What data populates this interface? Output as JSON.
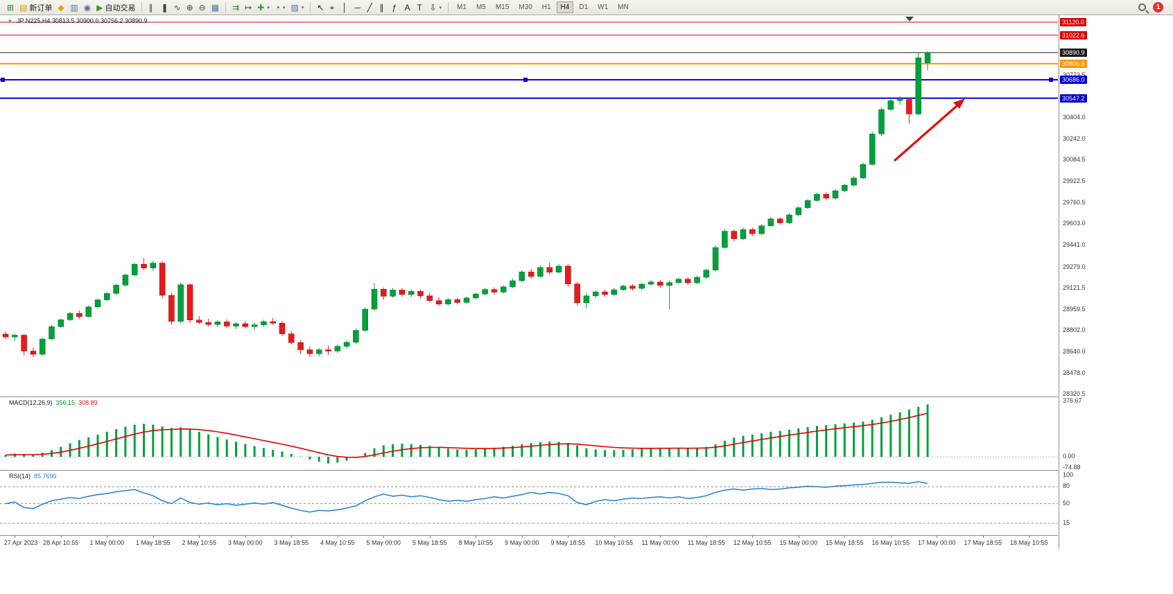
{
  "toolbar": {
    "caret_glyph": "▾",
    "groups": [
      {
        "items": [
          {
            "name": "new-chart-button",
            "glyph": "⊞",
            "color": "#2e7d32"
          },
          {
            "name": "new-order-button",
            "glyph": "▤",
            "color": "#c8a415",
            "label": "新订单"
          },
          {
            "name": "metaeditor-button",
            "glyph": "◆",
            "color": "#d9a520"
          },
          {
            "name": "market-watch-button",
            "glyph": "▥",
            "color": "#4a76a8"
          },
          {
            "name": "navigator-button",
            "glyph": "◉",
            "color": "#6d5ba8"
          },
          {
            "name": "auto-trading-button",
            "glyph": "▶",
            "color": "#2e9e2e",
            "label": "自动交易"
          }
        ]
      },
      {
        "items": [
          {
            "name": "bar-chart-type-button",
            "glyph": "∥",
            "color": "#444"
          },
          {
            "name": "candlestick-chart-type-button",
            "glyph": "❚",
            "color": "#444"
          },
          {
            "name": "line-chart-type-button",
            "glyph": "∿",
            "color": "#444"
          },
          {
            "name": "zoom-in-button",
            "glyph": "⊕",
            "color": "#444"
          },
          {
            "name": "zoom-out-button",
            "glyph": "⊖",
            "color": "#444"
          },
          {
            "name": "tile-windows-button",
            "glyph": "▦",
            "color": "#4a76a8"
          }
        ]
      },
      {
        "items": [
          {
            "name": "auto-scroll-button",
            "glyph": "⇉",
            "color": "#2e7d32"
          },
          {
            "name": "chart-shift-button",
            "glyph": "↦",
            "color": "#444"
          },
          {
            "name": "indicators-button",
            "glyph": "✚",
            "color": "#2e9e2e",
            "caret": true
          },
          {
            "name": "periods-button",
            "glyph": "◔",
            "color": "#444",
            "caret": true
          },
          {
            "name": "templates-button",
            "glyph": "▨",
            "color": "#4a76a8",
            "caret": true
          }
        ]
      },
      {
        "items": [
          {
            "name": "cursor-tool-button",
            "glyph": "↖",
            "color": "#222"
          },
          {
            "name": "crosshair-tool-button",
            "glyph": "⌖",
            "color": "#222"
          },
          {
            "name": "vertical-line-tool-button",
            "glyph": "│",
            "color": "#222"
          },
          {
            "name": "horizontal-line-tool-button",
            "glyph": "─",
            "color": "#222"
          },
          {
            "name": "trendline-tool-button",
            "glyph": "╱",
            "color": "#222"
          },
          {
            "name": "channel-tool-button",
            "glyph": "∥",
            "color": "#222"
          },
          {
            "name": "fibonacci-tool-button",
            "glyph": "ƒ",
            "color": "#222"
          },
          {
            "name": "text-tool-button",
            "glyph": "A",
            "color": "#222"
          },
          {
            "name": "label-tool-button",
            "glyph": "T",
            "color": "#222"
          },
          {
            "name": "shapes-tool-button",
            "glyph": "⇩",
            "color": "#222",
            "caret": true
          }
        ]
      }
    ],
    "timeframes": [
      "M1",
      "M5",
      "M15",
      "M30",
      "H1",
      "H4",
      "D1",
      "W1",
      "MN"
    ],
    "active_timeframe": "H4",
    "notification_badge": "1"
  },
  "chart": {
    "symbol_marker": "▸",
    "title": "JP N225,H4 30813.5 30900.0 30756.2 30890.9"
  },
  "price_axis": {
    "ticks": [
      "30723.5",
      "30404.0",
      "30242.0",
      "30084.5",
      "29922.5",
      "29760.5",
      "29603.0",
      "29441.0",
      "29279.0",
      "29121.5",
      "28959.5",
      "28802.0",
      "28640.0",
      "28478.0",
      "28320.5"
    ],
    "badges": [
      {
        "text": "31120.0",
        "color": "#dd0000"
      },
      {
        "text": "31022.6",
        "color": "#dd0000"
      },
      {
        "text": "30890.9",
        "color": "#1a1a1a",
        "role": "current"
      },
      {
        "text": "30806.8",
        "color": "#ff9500"
      },
      {
        "text": "30686.0",
        "color": "#0000cc"
      },
      {
        "text": "30547.2",
        "color": "#0000cc"
      }
    ]
  },
  "indicators": {
    "macd": {
      "name": "MACD(12,26,9)",
      "value": "356.15",
      "signal": "308.89",
      "axis_ticks": [
        "376.67",
        "0.00",
        "-74.88"
      ]
    },
    "rsi": {
      "name": "RSI(14)",
      "value": "85.7695",
      "axis_ticks": [
        "100",
        "80",
        "50",
        "15"
      ]
    }
  },
  "annotations": {
    "arrow_color": "#dd1111"
  },
  "chart_data": [
    {
      "type": "candlestick",
      "symbol": "JPN225",
      "timeframe": "H4",
      "ohlc_current": {
        "open": 30813.5,
        "high": 30900.0,
        "low": 30756.2,
        "close": 30890.9
      },
      "ylim": [
        28300.0,
        31172.0
      ],
      "colors": {
        "up": "#00a03c",
        "down": "#e51c1c",
        "up_edge": "#00702a",
        "down_edge": "#aa0000"
      },
      "x_labels": [
        "27 Apr 2023",
        "28 Apr 10:55",
        "1 May 00:00",
        "1 May 18:55",
        "2 May 10:55",
        "3 May 00:00",
        "3 May 18:55",
        "4 May 10:55",
        "5 May 00:00",
        "5 May 18:55",
        "8 May 10:55",
        "9 May 00:00",
        "9 May 18:55",
        "10 May 10:55",
        "11 May 00:00",
        "11 May 18:55",
        "12 May 10:55",
        "15 May 00:00",
        "15 May 18:55",
        "16 May 10:55",
        "17 May 00:00",
        "17 May 18:55",
        "18 May 10:55"
      ],
      "hlines": [
        {
          "price": 31120.0,
          "color": "#dd0000",
          "width": 1
        },
        {
          "price": 31022.6,
          "color": "#dd0000",
          "width": 1
        },
        {
          "price": 30890.9,
          "color": "#1a1a1a",
          "width": 1,
          "role": "current-price"
        },
        {
          "price": 30806.8,
          "color": "#ff9500",
          "width": 2
        },
        {
          "price": 30686.0,
          "color": "#0000cc",
          "width": 2,
          "handles": true
        },
        {
          "price": 30547.2,
          "color": "#0000cc",
          "width": 2
        }
      ],
      "candles": [
        [
          28770,
          28790,
          28735,
          28748
        ],
        [
          28748,
          28772,
          28718,
          28762
        ],
        [
          28762,
          28770,
          28610,
          28642
        ],
        [
          28642,
          28668,
          28596,
          28618
        ],
        [
          28618,
          28742,
          28608,
          28733
        ],
        [
          28733,
          28838,
          28726,
          28826
        ],
        [
          28826,
          28888,
          28818,
          28878
        ],
        [
          28878,
          28938,
          28868,
          28926
        ],
        [
          28926,
          28948,
          28882,
          28902
        ],
        [
          28902,
          28986,
          28896,
          28975
        ],
        [
          28975,
          29038,
          28965,
          29028
        ],
        [
          29028,
          29085,
          29018,
          29076
        ],
        [
          29076,
          29148,
          29066,
          29139
        ],
        [
          29139,
          29226,
          29128,
          29215
        ],
        [
          29215,
          29308,
          29206,
          29296
        ],
        [
          29296,
          29345,
          29252,
          29268
        ],
        [
          29268,
          29322,
          29248,
          29305
        ],
        [
          29305,
          29318,
          29040,
          29062
        ],
        [
          29062,
          29078,
          28838,
          28866
        ],
        [
          28866,
          29158,
          28852,
          29142
        ],
        [
          29142,
          29150,
          28852,
          28876
        ],
        [
          28876,
          28906,
          28842,
          28858
        ],
        [
          28858,
          28886,
          28828,
          28842
        ],
        [
          28842,
          28876,
          28824,
          28862
        ],
        [
          28862,
          28880,
          28816,
          28830
        ],
        [
          28830,
          28862,
          28808,
          28848
        ],
        [
          28848,
          28870,
          28812,
          28826
        ],
        [
          28826,
          28856,
          28800,
          28840
        ],
        [
          28840,
          28878,
          28826,
          28864
        ],
        [
          28864,
          28892,
          28838,
          28852
        ],
        [
          28852,
          28868,
          28756,
          28772
        ],
        [
          28772,
          28792,
          28692,
          28706
        ],
        [
          28706,
          28724,
          28618,
          28652
        ],
        [
          28652,
          28676,
          28598,
          28622
        ],
        [
          28622,
          28664,
          28602,
          28652
        ],
        [
          28652,
          28682,
          28612,
          28642
        ],
        [
          28642,
          28692,
          28626,
          28678
        ],
        [
          28678,
          28722,
          28662,
          28708
        ],
        [
          28708,
          28812,
          28698,
          28798
        ],
        [
          28798,
          28972,
          28788,
          28958
        ],
        [
          28958,
          29155,
          28948,
          29108
        ],
        [
          29108,
          29122,
          29028,
          29055
        ],
        [
          29055,
          29118,
          29042,
          29102
        ],
        [
          29102,
          29116,
          29052,
          29068
        ],
        [
          29068,
          29108,
          29048,
          29092
        ],
        [
          29092,
          29104,
          29038,
          29058
        ],
        [
          29058,
          29078,
          29008,
          29022
        ],
        [
          29022,
          29048,
          28982,
          28996
        ],
        [
          28996,
          29042,
          28986,
          29030
        ],
        [
          29030,
          29044,
          28992,
          29008
        ],
        [
          29008,
          29052,
          28998,
          29042
        ],
        [
          29042,
          29082,
          29032,
          29072
        ],
        [
          29072,
          29118,
          29062,
          29106
        ],
        [
          29106,
          29122,
          29068,
          29086
        ],
        [
          29086,
          29138,
          29076,
          29126
        ],
        [
          29126,
          29186,
          29116,
          29172
        ],
        [
          29172,
          29252,
          29162,
          29238
        ],
        [
          29238,
          29262,
          29186,
          29204
        ],
        [
          29204,
          29288,
          29194,
          29272
        ],
        [
          29272,
          29308,
          29218,
          29236
        ],
        [
          29236,
          29296,
          29226,
          29282
        ],
        [
          29282,
          29296,
          29128,
          29148
        ],
        [
          29148,
          29162,
          28986,
          29006
        ],
        [
          29006,
          29078,
          28962,
          29058
        ],
        [
          29058,
          29102,
          29042,
          29088
        ],
        [
          29088,
          29104,
          29052,
          29068
        ],
        [
          29068,
          29118,
          29058,
          29104
        ],
        [
          29104,
          29142,
          29094,
          29132
        ],
        [
          29132,
          29148,
          29098,
          29114
        ],
        [
          29114,
          29156,
          29104,
          29146
        ],
        [
          29146,
          29176,
          29136,
          29162
        ],
        [
          29162,
          29178,
          29118,
          29136
        ],
        [
          29136,
          29172,
          28958,
          29158
        ],
        [
          29158,
          29196,
          29146,
          29184
        ],
        [
          29184,
          29198,
          29142,
          29156
        ],
        [
          29156,
          29212,
          29146,
          29198
        ],
        [
          29198,
          29262,
          29188,
          29252
        ],
        [
          29252,
          29438,
          29242,
          29422
        ],
        [
          29422,
          29562,
          29412,
          29545
        ],
        [
          29545,
          29558,
          29468,
          29488
        ],
        [
          29488,
          29572,
          29478,
          29558
        ],
        [
          29558,
          29572,
          29508,
          29526
        ],
        [
          29526,
          29598,
          29516,
          29586
        ],
        [
          29586,
          29652,
          29576,
          29638
        ],
        [
          29638,
          29652,
          29592,
          29608
        ],
        [
          29608,
          29682,
          29598,
          29668
        ],
        [
          29668,
          29732,
          29658,
          29722
        ],
        [
          29722,
          29788,
          29712,
          29776
        ],
        [
          29776,
          29836,
          29766,
          29824
        ],
        [
          29824,
          29838,
          29778,
          29794
        ],
        [
          29794,
          29862,
          29784,
          29850
        ],
        [
          29850,
          29904,
          29840,
          29892
        ],
        [
          29892,
          29958,
          29882,
          29946
        ],
        [
          29946,
          30062,
          29936,
          30048
        ],
        [
          30048,
          30295,
          30038,
          30278
        ],
        [
          30278,
          30475,
          30262,
          30462
        ],
        [
          30462,
          30545,
          30452,
          30528
        ],
        [
          30528,
          30562,
          30498,
          30538
        ],
        [
          30538,
          30552,
          30355,
          30428
        ],
        [
          30428,
          30888,
          30418,
          30852
        ],
        [
          30813.5,
          30900.0,
          30756.2,
          30890.9
        ]
      ]
    },
    {
      "type": "bar",
      "name": "MACD(12,26,9)",
      "current": 356.15,
      "signal_current": 308.89,
      "ylim": [
        -74.88,
        376.67
      ],
      "color": "#00a03c",
      "signal_color": "#e00000",
      "values": [
        12,
        22,
        18,
        14,
        28,
        46,
        68,
        92,
        113,
        132,
        150,
        170,
        188,
        205,
        218,
        224,
        218,
        206,
        196,
        200,
        186,
        170,
        152,
        135,
        118,
        102,
        87,
        73,
        60,
        48,
        36,
        20,
        2,
        -18,
        -34,
        -45,
        -40,
        -26,
        -6,
        26,
        58,
        78,
        86,
        89,
        86,
        82,
        75,
        65,
        56,
        50,
        48,
        51,
        56,
        62,
        68,
        75,
        85,
        94,
        100,
        104,
        102,
        94,
        78,
        58,
        50,
        46,
        45,
        47,
        51,
        55,
        58,
        60,
        58,
        60,
        57,
        60,
        67,
        85,
        110,
        130,
        143,
        151,
        160,
        170,
        176,
        184,
        193,
        202,
        210,
        215,
        221,
        227,
        232,
        239,
        252,
        268,
        286,
        302,
        320,
        340,
        356.15
      ]
    },
    {
      "type": "line",
      "name": "RSI(14)",
      "current": 85.7695,
      "levels": [
        80,
        50,
        15
      ],
      "ylim": [
        0,
        100
      ],
      "color": "#1f7fd4",
      "values": [
        50,
        53,
        43,
        41,
        49,
        55,
        58,
        61,
        59,
        63,
        66,
        68,
        71,
        73,
        75,
        69,
        64,
        55,
        50,
        60,
        52,
        49,
        51,
        48,
        50,
        47,
        49,
        51,
        49,
        52,
        47,
        42,
        38,
        35,
        38,
        37,
        39,
        42,
        46,
        55,
        62,
        67,
        63,
        65,
        62,
        64,
        61,
        57,
        54,
        56,
        54,
        57,
        59,
        62,
        60,
        63,
        66,
        70,
        67,
        70,
        68,
        64,
        52,
        48,
        54,
        57,
        55,
        58,
        60,
        59,
        61,
        62,
        60,
        62,
        59,
        61,
        64,
        70,
        74,
        76,
        74,
        76,
        77,
        75,
        76,
        78,
        79,
        81,
        80,
        79,
        81,
        82,
        83,
        84,
        86,
        88,
        88,
        87,
        86,
        89,
        85.7695
      ]
    }
  ]
}
